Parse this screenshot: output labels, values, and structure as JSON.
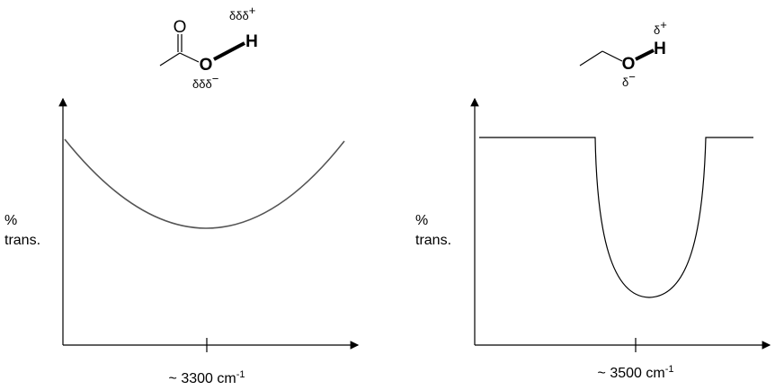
{
  "left": {
    "molecule": {
      "carbonyl_o": "O",
      "o": "O",
      "h": "H",
      "charge_h": "δδδ",
      "charge_h_sign": "+",
      "charge_o": "δδδ",
      "charge_o_sign": "−"
    },
    "y_label": {
      "line1": "%",
      "line2": "trans."
    },
    "x_label": {
      "text": "~ 3300 cm",
      "sup": "-1"
    }
  },
  "right": {
    "molecule": {
      "o": "O",
      "h": "H",
      "charge_h": "δ",
      "charge_h_sign": "+",
      "charge_o": "δ",
      "charge_o_sign": "−"
    },
    "y_label": {
      "line1": "%",
      "line2": "trans."
    },
    "x_label": {
      "text": "~ 3500 cm",
      "sup": "-1"
    }
  }
}
